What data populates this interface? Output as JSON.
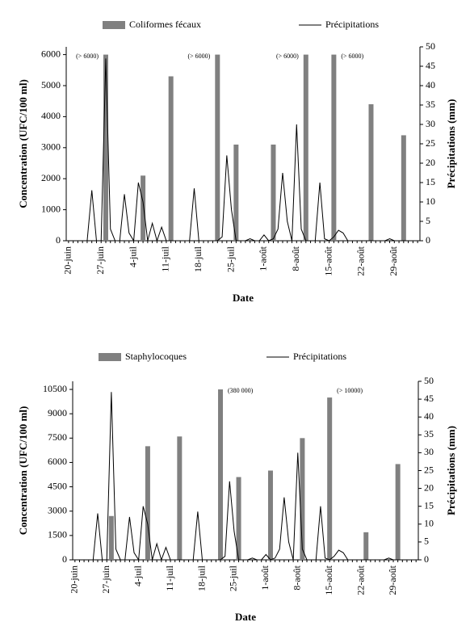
{
  "chart_data": [
    {
      "type": "bar",
      "x_label": "Date",
      "y_label": "Concentration (UFC/100 ml)",
      "y2_label": "Précipitations (mm)",
      "categories": [
        "20-juin",
        null,
        null,
        null,
        null,
        null,
        null,
        "27-juin",
        null,
        null,
        null,
        null,
        null,
        null,
        "4-juil",
        null,
        null,
        null,
        null,
        null,
        null,
        "11-juil",
        null,
        null,
        null,
        null,
        null,
        null,
        "18-juil",
        null,
        null,
        null,
        null,
        null,
        null,
        "25-juil",
        null,
        null,
        null,
        null,
        null,
        null,
        "1-août",
        null,
        null,
        null,
        null,
        null,
        null,
        "8-août",
        null,
        null,
        null,
        null,
        null,
        null,
        "15-août",
        null,
        null,
        null,
        null,
        null,
        null,
        "22-août",
        null,
        null,
        null,
        null,
        null,
        null,
        "29-août",
        null,
        null,
        null,
        null,
        null
      ],
      "ylim": [
        0,
        6250
      ],
      "yticks": [
        0,
        1000,
        2000,
        3000,
        4000,
        5000,
        6000
      ],
      "y2lim": [
        0,
        50
      ],
      "y2ticks": [
        0,
        5,
        10,
        15,
        20,
        25,
        30,
        35,
        40,
        45,
        50
      ],
      "series": [
        {
          "name": "Coliformes fécaux",
          "type": "bar",
          "color": "#808080",
          "values": [
            null,
            null,
            null,
            null,
            null,
            null,
            null,
            null,
            6000,
            null,
            null,
            null,
            null,
            null,
            null,
            null,
            2100,
            null,
            null,
            null,
            null,
            null,
            5300,
            null,
            null,
            null,
            null,
            null,
            null,
            null,
            null,
            null,
            6000,
            null,
            null,
            null,
            3100,
            null,
            null,
            null,
            null,
            null,
            null,
            null,
            3100,
            null,
            null,
            null,
            null,
            null,
            null,
            6000,
            null,
            null,
            null,
            null,
            null,
            6000,
            null,
            null,
            null,
            null,
            null,
            null,
            null,
            4400,
            null,
            null,
            null,
            null,
            null,
            null,
            3400,
            null,
            null,
            null
          ],
          "value_labels": [
            null,
            null,
            null,
            null,
            null,
            null,
            null,
            null,
            "(> 6000)",
            null,
            null,
            null,
            null,
            null,
            null,
            null,
            null,
            null,
            null,
            null,
            null,
            null,
            null,
            null,
            null,
            null,
            null,
            null,
            null,
            null,
            null,
            null,
            "(> 6000)",
            null,
            null,
            null,
            null,
            null,
            null,
            null,
            null,
            null,
            null,
            null,
            null,
            null,
            null,
            null,
            null,
            null,
            null,
            "(> 6000)",
            null,
            null,
            null,
            null,
            null,
            "(> 6000)",
            null,
            null,
            null,
            null,
            null,
            null,
            null,
            null,
            null,
            null,
            null,
            null,
            null,
            null,
            null,
            null,
            null,
            null
          ]
        },
        {
          "name": "Précipitations",
          "type": "line",
          "color": "#000000",
          "axis": "y2",
          "values": [
            0,
            0,
            0,
            0,
            0,
            13,
            0,
            0,
            47,
            3,
            0,
            0,
            12,
            2,
            0,
            15,
            10,
            0,
            4.5,
            0,
            3.5,
            0,
            0,
            0,
            0,
            0,
            0,
            13.5,
            0,
            0,
            0,
            0,
            0,
            1,
            22,
            8,
            0,
            0,
            0,
            0.5,
            0,
            0,
            1.5,
            0,
            0.5,
            3,
            17.5,
            5,
            0,
            30,
            3,
            0,
            0,
            0,
            15,
            0.5,
            0,
            1,
            2.7,
            2,
            0,
            0,
            0,
            0,
            0,
            0,
            0,
            0,
            0,
            0.5,
            0,
            0,
            0,
            0,
            0,
            0
          ]
        }
      ]
    },
    {
      "type": "bar",
      "x_label": "Date",
      "y_label": "Concentration (UFC/100 ml)",
      "y2_label": "Précipitations (mm)",
      "categories": [
        "20-juin",
        null,
        null,
        null,
        null,
        null,
        null,
        "27-juin",
        null,
        null,
        null,
        null,
        null,
        null,
        "4-juil",
        null,
        null,
        null,
        null,
        null,
        null,
        "11-juil",
        null,
        null,
        null,
        null,
        null,
        null,
        "18-juil",
        null,
        null,
        null,
        null,
        null,
        null,
        "25-juil",
        null,
        null,
        null,
        null,
        null,
        null,
        "1-août",
        null,
        null,
        null,
        null,
        null,
        null,
        "8-août",
        null,
        null,
        null,
        null,
        null,
        null,
        "15-août",
        null,
        null,
        null,
        null,
        null,
        null,
        "22-août",
        null,
        null,
        null,
        null,
        null,
        null,
        "29-août",
        null,
        null,
        null,
        null,
        null
      ],
      "ylim": [
        0,
        11000
      ],
      "yticks": [
        0,
        1500,
        3000,
        4500,
        6000,
        7500,
        9000,
        10500
      ],
      "y2lim": [
        0,
        50
      ],
      "y2ticks": [
        0,
        5,
        10,
        15,
        20,
        25,
        30,
        35,
        40,
        45,
        50
      ],
      "series": [
        {
          "name": "Staphylocoques",
          "type": "bar",
          "color": "#808080",
          "values": [
            null,
            null,
            null,
            null,
            null,
            null,
            null,
            null,
            2700,
            null,
            null,
            null,
            null,
            null,
            null,
            null,
            7000,
            null,
            null,
            null,
            null,
            null,
            null,
            7600,
            null,
            null,
            null,
            null,
            null,
            null,
            null,
            null,
            10500,
            null,
            null,
            null,
            5100,
            null,
            null,
            null,
            null,
            null,
            null,
            5500,
            null,
            null,
            null,
            null,
            null,
            null,
            7500,
            null,
            null,
            null,
            null,
            null,
            10000,
            null,
            null,
            null,
            null,
            null,
            null,
            null,
            1700,
            null,
            null,
            null,
            null,
            null,
            null,
            5900,
            null,
            null,
            null,
            null
          ],
          "value_labels": [
            null,
            null,
            null,
            null,
            null,
            null,
            null,
            null,
            null,
            null,
            null,
            null,
            null,
            null,
            null,
            null,
            null,
            null,
            null,
            null,
            null,
            null,
            null,
            null,
            null,
            null,
            null,
            null,
            null,
            null,
            null,
            null,
            "(380 000)",
            null,
            null,
            null,
            null,
            null,
            null,
            null,
            null,
            null,
            null,
            null,
            null,
            null,
            null,
            null,
            null,
            null,
            null,
            null,
            null,
            null,
            null,
            null,
            "(> 10000)",
            null,
            null,
            null,
            null,
            null,
            null,
            null,
            null,
            null,
            null,
            null,
            null,
            null,
            null,
            null,
            null,
            null,
            null,
            null
          ]
        },
        {
          "name": "Précipitations",
          "type": "line",
          "color": "#000000",
          "axis": "y2",
          "values": [
            0,
            0,
            0,
            0,
            0,
            13,
            0,
            0,
            47,
            3,
            0,
            0,
            12,
            2,
            0,
            15,
            10,
            0,
            4.5,
            0,
            3.5,
            0,
            0,
            0,
            0,
            0,
            0,
            13.5,
            0,
            0,
            0,
            0,
            0,
            1,
            22,
            8,
            0,
            0,
            0,
            0.5,
            0,
            0,
            1.5,
            0,
            0.5,
            3,
            17.5,
            5,
            0,
            30,
            3,
            0,
            0,
            0,
            15,
            0.5,
            0,
            1,
            2.7,
            2,
            0,
            0,
            0,
            0,
            0,
            0,
            0,
            0,
            0,
            0.5,
            0,
            0,
            0,
            0,
            0,
            0
          ]
        }
      ]
    }
  ]
}
